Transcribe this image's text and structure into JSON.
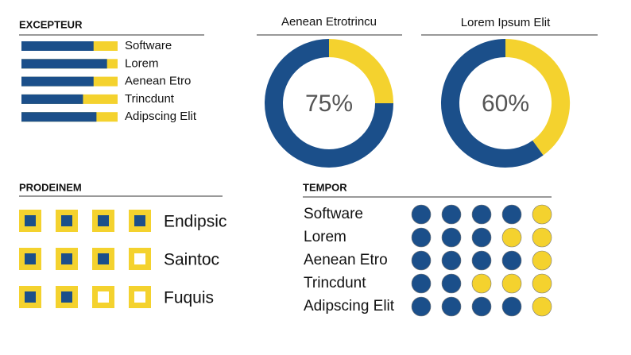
{
  "chart_data": [
    {
      "type": "progress",
      "title": "EXCEPTEUR",
      "categories": [
        "Software",
        "Lorem",
        "Aenean Etro",
        "Trincdunt",
        "Adipscing Elit"
      ],
      "values": [
        75,
        89,
        75,
        64,
        78
      ],
      "xlim": [
        0,
        100
      ],
      "colors": [
        "#1b4f8a",
        "#f4d22e"
      ]
    },
    {
      "type": "donut",
      "title": "Aenean Etrotrincu",
      "values": [
        75
      ],
      "value_labels": [
        "75%"
      ],
      "xlim": [
        0,
        100
      ],
      "colors": [
        "#1b4f8a",
        "#f4d22e"
      ]
    },
    {
      "type": "donut",
      "title": "Lorem Ipsum Elit",
      "values": [
        60
      ],
      "value_labels": [
        "60%"
      ],
      "xlim": [
        0,
        100
      ],
      "colors": [
        "#1b4f8a",
        "#f4d22e"
      ]
    },
    {
      "type": "icons",
      "title": "PRODEINEM",
      "categories": [
        "Endipsic",
        "Saintoc",
        "Fuquis"
      ],
      "values": [
        4,
        3,
        2
      ],
      "xlim": [
        0,
        4
      ],
      "colors": [
        "#1b4f8a",
        "#f4d22e"
      ]
    },
    {
      "type": "dots",
      "title": "TEMPOR",
      "categories": [
        "Software",
        "Lorem",
        "Aenean Etro",
        "Trincdunt",
        "Adipscing Elit"
      ],
      "values": [
        4,
        3,
        4,
        2,
        4
      ],
      "xlim": [
        0,
        5
      ],
      "colors": [
        "#1b4f8a",
        "#f4d22e"
      ]
    }
  ]
}
